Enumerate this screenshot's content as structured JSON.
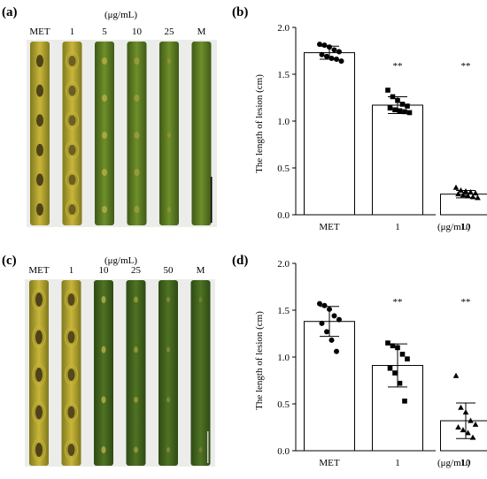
{
  "panels": {
    "a": {
      "label": "(a)",
      "unit": "(μg/mL)",
      "columns": [
        "MET",
        "1",
        "5",
        "10",
        "25",
        "M"
      ]
    },
    "c": {
      "label": "(c)",
      "unit": "(μg/mL)",
      "columns": [
        "MET",
        "1",
        "10",
        "25",
        "50",
        "M"
      ]
    }
  },
  "leaf_colors": {
    "green_dark": "#4c6b1f",
    "green_mid": "#6f8f2a",
    "yellow": "#c9b53a",
    "lesion": "#3a2f14"
  },
  "chart_data": [
    {
      "panel": "(b)",
      "type": "bar",
      "categories": [
        "MET",
        "1",
        "10"
      ],
      "values": [
        1.73,
        1.17,
        0.22
      ],
      "error": [
        0.07,
        0.09,
        0.04
      ],
      "points": [
        [
          1.82,
          1.81,
          1.79,
          1.76,
          1.74,
          1.71,
          1.69,
          1.67,
          1.66,
          1.64
        ],
        [
          1.33,
          1.26,
          1.22,
          1.18,
          1.16,
          1.14,
          1.12,
          1.11,
          1.1,
          1.09
        ],
        [
          0.29,
          0.26,
          0.25,
          0.24,
          0.23,
          0.22,
          0.21,
          0.2,
          0.19,
          0.18
        ]
      ],
      "markers": [
        "circle",
        "square",
        "triangle"
      ],
      "significance": [
        "",
        "**",
        "**"
      ],
      "ylabel": "The length of lesion (cm)",
      "xunit": "(μg/mL)",
      "ylim": [
        0,
        2.0
      ],
      "yticks": [
        "0.0",
        "0.5",
        "1.0",
        "1.5",
        "2.0"
      ]
    },
    {
      "panel": "(d)",
      "type": "bar",
      "categories": [
        "MET",
        "1",
        "10"
      ],
      "values": [
        1.38,
        0.91,
        0.32
      ],
      "error": [
        0.16,
        0.23,
        0.19
      ],
      "points": [
        [
          1.57,
          1.55,
          1.51,
          1.44,
          1.4,
          1.36,
          1.27,
          1.18,
          1.06
        ],
        [
          1.15,
          1.12,
          1.1,
          1.03,
          0.98,
          0.88,
          0.83,
          0.72,
          0.53
        ],
        [
          0.8,
          0.46,
          0.41,
          0.32,
          0.28,
          0.25,
          0.22,
          0.19,
          0.14
        ]
      ],
      "markers": [
        "circle",
        "square",
        "triangle"
      ],
      "significance": [
        "",
        "**",
        "**"
      ],
      "ylabel": "The length of lesion (cm)",
      "xunit": "(μg/mL)",
      "ylim": [
        0,
        2.0
      ],
      "yticks": [
        "0.0",
        "0.5",
        "1.0",
        "1.5",
        "2.0"
      ]
    }
  ]
}
